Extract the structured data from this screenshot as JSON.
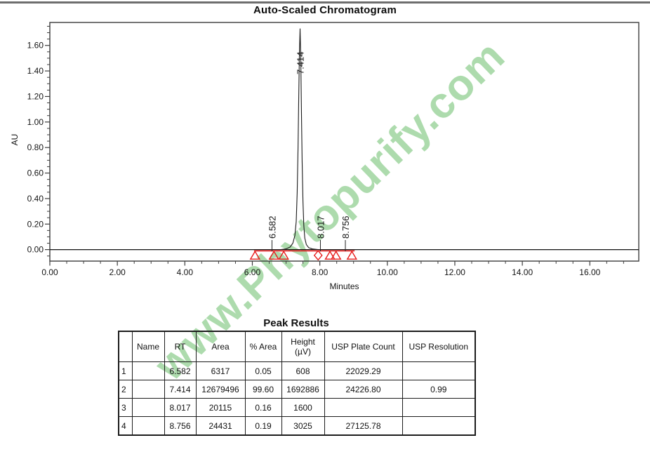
{
  "page": {
    "title": "Auto-Scaled Chromatogram"
  },
  "watermark": {
    "text": "www.Phytopurify.com",
    "color": "#9cd49c"
  },
  "chart_data": {
    "type": "line",
    "title": "Auto-Scaled Chromatogram",
    "xlabel": "Minutes",
    "ylabel": "AU",
    "xlim": [
      0,
      17.45
    ],
    "ylim": [
      -0.09,
      1.78
    ],
    "grid": false,
    "x_tick_values": [
      0,
      2,
      4,
      6,
      8,
      10,
      12,
      14,
      16
    ],
    "x_tick_labels": [
      "0.00",
      "2.00",
      "4.00",
      "6.00",
      "8.00",
      "10.00",
      "12.00",
      "14.00",
      "16.00"
    ],
    "x_minor_step": 0.5,
    "y_tick_values": [
      0.0,
      0.2,
      0.4,
      0.6,
      0.8,
      1.0,
      1.2,
      1.4,
      1.6
    ],
    "y_tick_labels": [
      "0.00",
      "0.20",
      "0.40",
      "0.60",
      "0.80",
      "1.00",
      "1.20",
      "1.40",
      "1.60"
    ],
    "y_minor_step": 0.05,
    "series": [
      {
        "name": "chromatogram-trace",
        "color": "#1a1a1a",
        "points": [
          [
            0,
            0
          ],
          [
            6.85,
            0
          ],
          [
            7.0,
            0.006
          ],
          [
            7.12,
            0.02
          ],
          [
            7.2,
            0.05
          ],
          [
            7.26,
            0.11
          ],
          [
            7.3,
            0.22
          ],
          [
            7.33,
            0.45
          ],
          [
            7.355,
            0.8
          ],
          [
            7.375,
            1.2
          ],
          [
            7.395,
            1.55
          ],
          [
            7.414,
            1.73
          ],
          [
            7.435,
            1.5
          ],
          [
            7.455,
            1.1
          ],
          [
            7.475,
            0.7
          ],
          [
            7.5,
            0.38
          ],
          [
            7.525,
            0.19
          ],
          [
            7.555,
            0.09
          ],
          [
            7.6,
            0.04
          ],
          [
            7.67,
            0.015
          ],
          [
            7.78,
            0.005
          ],
          [
            7.95,
            0.001
          ],
          [
            8.1,
            0
          ],
          [
            17.45,
            0
          ]
        ]
      }
    ],
    "peak_labels": [
      {
        "rt": 6.582,
        "text": "6.582",
        "major": false
      },
      {
        "rt": 7.414,
        "text": "7.414",
        "major": true
      },
      {
        "rt": 8.017,
        "text": "8.017",
        "major": false
      },
      {
        "rt": 8.756,
        "text": "8.756",
        "major": false
      }
    ],
    "integration_markers": {
      "color": "#e81c1c",
      "baseline_x": [
        6.05,
        9.03
      ],
      "triangles_x": [
        6.08,
        6.64,
        6.93,
        8.3,
        8.48,
        8.95
      ],
      "diamonds_x": [
        7.95
      ]
    }
  },
  "peak_table": {
    "title": "Peak Results",
    "headers": [
      "",
      "Name",
      "RT",
      "Area",
      "% Area",
      "Height\n(µV)",
      "USP Plate Count",
      "USP Resolution"
    ],
    "rows": [
      [
        "1",
        "",
        "6.582",
        "6317",
        "0.05",
        "608",
        "22029.29",
        ""
      ],
      [
        "2",
        "",
        "7.414",
        "12679496",
        "99.60",
        "1692886",
        "24226.80",
        "0.99"
      ],
      [
        "3",
        "",
        "8.017",
        "20115",
        "0.16",
        "1600",
        "",
        ""
      ],
      [
        "4",
        "",
        "8.756",
        "24431",
        "0.19",
        "3025",
        "27125.78",
        ""
      ]
    ]
  }
}
